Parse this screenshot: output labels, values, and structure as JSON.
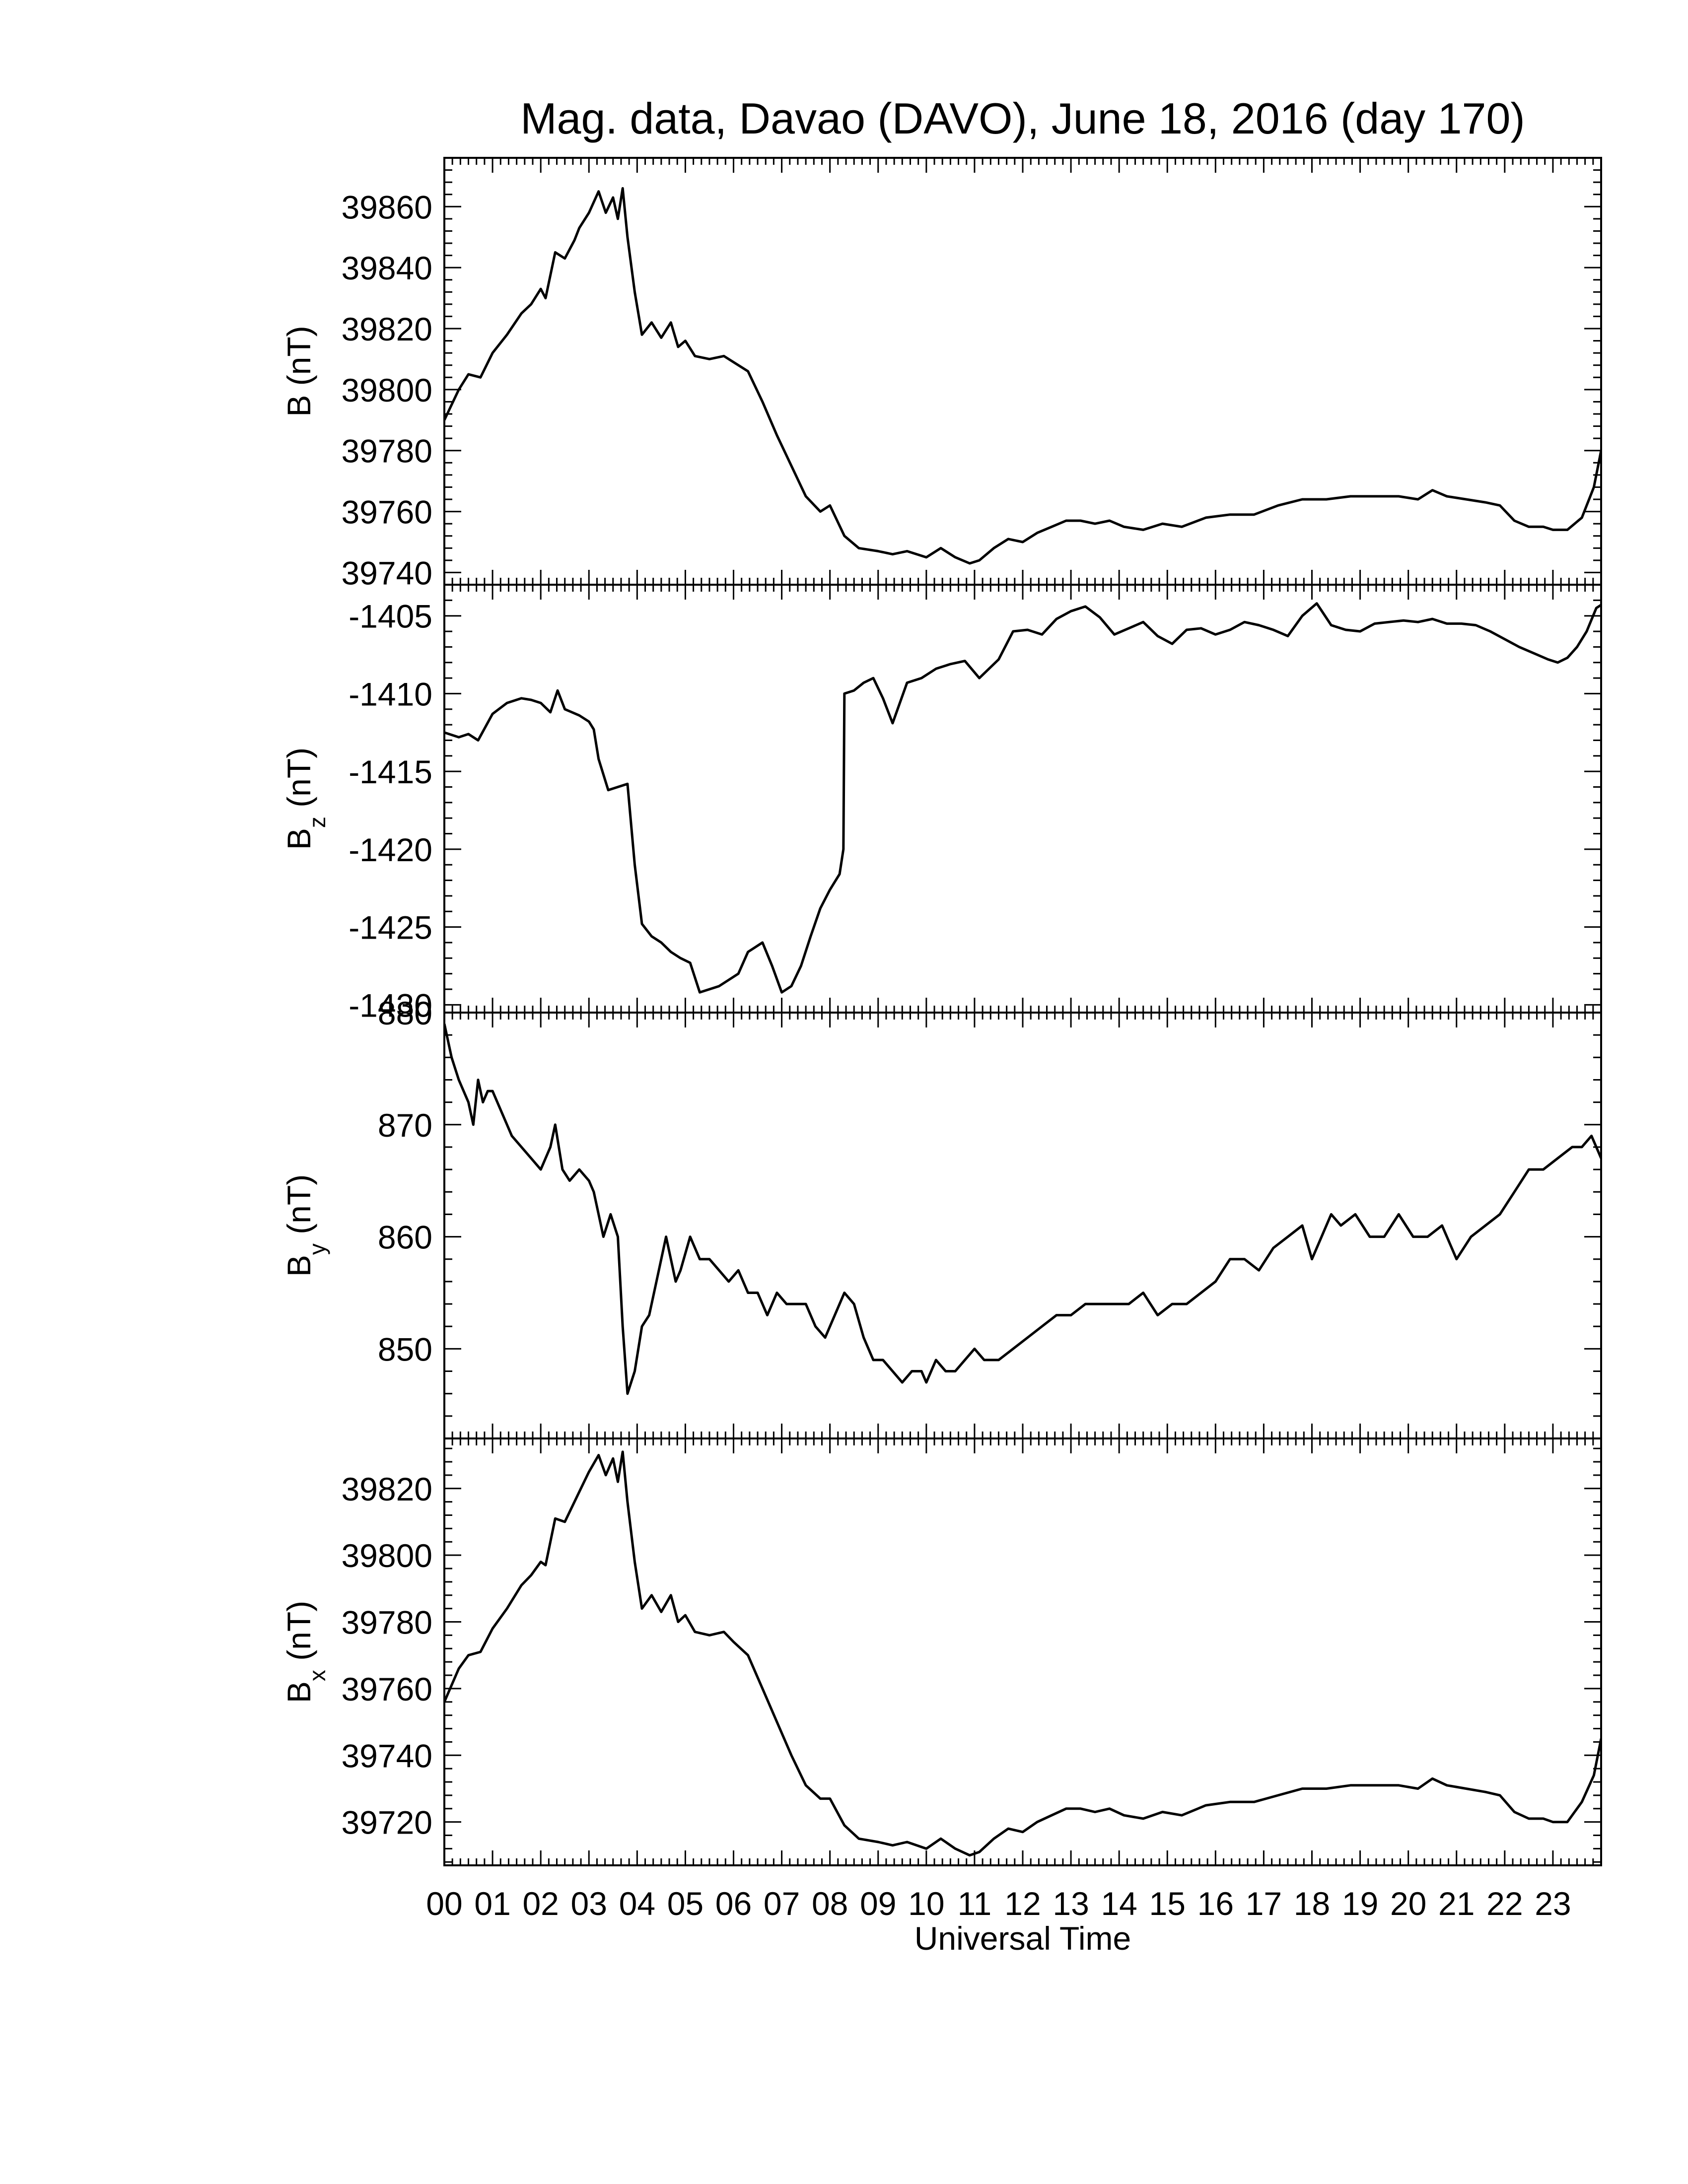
{
  "chart_data": {
    "title": "Mag. data, Davao (DAVO), June 18, 2016 (day 170)",
    "xlabel": "Universal Time",
    "x_ticks": [
      "00",
      "01",
      "02",
      "03",
      "04",
      "05",
      "06",
      "07",
      "08",
      "09",
      "10",
      "11",
      "12",
      "13",
      "14",
      "15",
      "16",
      "17",
      "18",
      "19",
      "20",
      "21",
      "22",
      "23"
    ],
    "xlim": [
      0,
      24
    ],
    "panels": [
      {
        "type": "line",
        "ylabel": "B (nT)",
        "ylabel_main": "B",
        "ylabel_sub": "",
        "ylim": [
          39736,
          39876
        ],
        "yticks": [
          39740,
          39760,
          39780,
          39800,
          39820,
          39840,
          39860
        ],
        "ytick_labels": [
          "39740",
          "39760",
          "39780",
          "39800",
          "39820",
          "39840",
          "39860"
        ],
        "x": [
          0.0,
          0.3,
          0.5,
          0.75,
          1.0,
          1.3,
          1.6,
          1.8,
          2.0,
          2.1,
          2.3,
          2.5,
          2.7,
          2.8,
          3.0,
          3.2,
          3.35,
          3.5,
          3.6,
          3.7,
          3.8,
          3.95,
          4.1,
          4.3,
          4.5,
          4.7,
          4.85,
          5.0,
          5.2,
          5.5,
          5.8,
          6.0,
          6.3,
          6.6,
          6.9,
          7.2,
          7.5,
          7.8,
          8.0,
          8.3,
          8.6,
          9.0,
          9.3,
          9.6,
          10.0,
          10.3,
          10.6,
          10.9,
          11.1,
          11.4,
          11.7,
          12.0,
          12.3,
          12.6,
          12.9,
          13.2,
          13.5,
          13.8,
          14.1,
          14.5,
          14.9,
          15.3,
          15.8,
          16.3,
          16.8,
          17.3,
          17.8,
          18.3,
          18.8,
          19.3,
          19.8,
          20.2,
          20.5,
          20.8,
          21.2,
          21.6,
          21.9,
          22.2,
          22.5,
          22.8,
          23.0,
          23.3,
          23.6,
          23.85,
          24.0
        ],
        "y": [
          39790,
          39800,
          39805,
          39804,
          39812,
          39818,
          39825,
          39828,
          39833,
          39830,
          39845,
          39843,
          39849,
          39853,
          39858,
          39865,
          39858,
          39863,
          39856,
          39866,
          39850,
          39832,
          39818,
          39822,
          39817,
          39822,
          39814,
          39816,
          39811,
          39810,
          39811,
          39809,
          39806,
          39796,
          39785,
          39775,
          39765,
          39760,
          39762,
          39752,
          39748,
          39747,
          39746,
          39747,
          39745,
          39748,
          39745,
          39743,
          39744,
          39748,
          39751,
          39750,
          39753,
          39755,
          39757,
          39757,
          39756,
          39757,
          39755,
          39754,
          39756,
          39755,
          39758,
          39759,
          39759,
          39762,
          39764,
          39764,
          39765,
          39765,
          39765,
          39764,
          39767,
          39765,
          39764,
          39763,
          39762,
          39757,
          39755,
          39755,
          39754,
          39754,
          39758,
          39768,
          39780
        ],
        "color": "#000000"
      },
      {
        "type": "line",
        "ylabel": "Bz (nT)",
        "ylabel_main": "B",
        "ylabel_sub": "z",
        "ylim": [
          -1430.5,
          -1403.0
        ],
        "yticks": [
          -1430,
          -1425,
          -1420,
          -1415,
          -1410,
          -1405
        ],
        "ytick_labels": [
          "-1430",
          "-1425",
          "-1420",
          "-1415",
          "-1410",
          "-1405"
        ],
        "x": [
          0.0,
          0.3,
          0.5,
          0.7,
          1.0,
          1.3,
          1.6,
          1.8,
          2.0,
          2.2,
          2.35,
          2.5,
          2.8,
          3.0,
          3.1,
          3.2,
          3.4,
          3.6,
          3.8,
          3.95,
          4.1,
          4.3,
          4.5,
          4.7,
          4.9,
          5.1,
          5.3,
          5.5,
          5.7,
          5.9,
          6.1,
          6.3,
          6.6,
          6.8,
          7.0,
          7.2,
          7.4,
          7.6,
          7.8,
          8.0,
          8.2,
          8.28,
          8.3,
          8.5,
          8.7,
          8.9,
          9.1,
          9.3,
          9.6,
          9.9,
          10.2,
          10.5,
          10.8,
          11.1,
          11.5,
          11.8,
          12.1,
          12.4,
          12.7,
          13.0,
          13.3,
          13.6,
          13.9,
          14.2,
          14.5,
          14.8,
          15.1,
          15.4,
          15.7,
          16.0,
          16.3,
          16.6,
          16.9,
          17.2,
          17.5,
          17.8,
          18.1,
          18.4,
          18.7,
          19.0,
          19.3,
          19.6,
          19.9,
          20.2,
          20.5,
          20.8,
          21.1,
          21.4,
          21.7,
          22.0,
          22.3,
          22.6,
          22.9,
          23.1,
          23.3,
          23.5,
          23.7,
          23.9,
          24.0
        ],
        "y": [
          -1412.5,
          -1412.8,
          -1412.6,
          -1413.0,
          -1411.3,
          -1410.6,
          -1410.3,
          -1410.4,
          -1410.6,
          -1411.2,
          -1409.8,
          -1411.0,
          -1411.4,
          -1411.8,
          -1412.3,
          -1414.2,
          -1416.2,
          -1416.0,
          -1415.8,
          -1421.0,
          -1424.8,
          -1425.6,
          -1426.0,
          -1426.6,
          -1427.0,
          -1427.3,
          -1429.2,
          -1429.0,
          -1428.8,
          -1428.4,
          -1428.0,
          -1426.6,
          -1426.0,
          -1427.5,
          -1429.2,
          -1428.8,
          -1427.5,
          -1425.6,
          -1423.8,
          -1422.6,
          -1421.6,
          -1420.0,
          -1410.0,
          -1409.8,
          -1409.3,
          -1409.0,
          -1410.3,
          -1411.9,
          -1409.3,
          -1409.0,
          -1408.4,
          -1408.1,
          -1407.9,
          -1409.0,
          -1407.8,
          -1406.0,
          -1405.9,
          -1406.2,
          -1405.2,
          -1404.7,
          -1404.4,
          -1405.1,
          -1406.2,
          -1405.8,
          -1405.4,
          -1406.3,
          -1406.8,
          -1405.9,
          -1405.8,
          -1406.2,
          -1405.9,
          -1405.4,
          -1405.6,
          -1405.9,
          -1406.3,
          -1405.0,
          -1404.2,
          -1405.6,
          -1405.9,
          -1406.0,
          -1405.5,
          -1405.4,
          -1405.3,
          -1405.4,
          -1405.2,
          -1405.5,
          -1405.5,
          -1405.6,
          -1406.0,
          -1406.5,
          -1407.0,
          -1407.4,
          -1407.8,
          -1408.0,
          -1407.7,
          -1407.0,
          -1406.0,
          -1404.5,
          -1404.3
        ],
        "color": "#000000"
      },
      {
        "type": "line",
        "ylabel": "By (nT)",
        "ylabel_main": "B",
        "ylabel_sub": "y",
        "ylim": [
          842,
          880
        ],
        "yticks": [
          850,
          860,
          870,
          880
        ],
        "ytick_labels": [
          "850",
          "860",
          "870",
          "880"
        ],
        "x": [
          0.0,
          0.15,
          0.3,
          0.5,
          0.6,
          0.7,
          0.8,
          0.9,
          1.0,
          1.2,
          1.4,
          1.6,
          1.8,
          2.0,
          2.2,
          2.3,
          2.45,
          2.6,
          2.8,
          3.0,
          3.1,
          3.2,
          3.3,
          3.45,
          3.6,
          3.7,
          3.8,
          3.95,
          4.1,
          4.25,
          4.4,
          4.6,
          4.8,
          4.9,
          5.1,
          5.3,
          5.5,
          5.7,
          5.9,
          6.1,
          6.3,
          6.5,
          6.7,
          6.9,
          7.1,
          7.3,
          7.5,
          7.7,
          7.9,
          8.1,
          8.3,
          8.5,
          8.7,
          8.9,
          9.1,
          9.3,
          9.5,
          9.7,
          9.9,
          10.0,
          10.2,
          10.4,
          10.6,
          10.8,
          11.0,
          11.2,
          11.5,
          11.8,
          12.1,
          12.4,
          12.7,
          13.0,
          13.3,
          13.6,
          13.9,
          14.2,
          14.5,
          14.8,
          15.1,
          15.4,
          15.7,
          16.0,
          16.3,
          16.6,
          16.9,
          17.2,
          17.5,
          17.8,
          18.0,
          18.2,
          18.4,
          18.6,
          18.9,
          19.2,
          19.5,
          19.8,
          20.1,
          20.4,
          20.7,
          21.0,
          21.3,
          21.6,
          21.9,
          22.2,
          22.5,
          22.8,
          23.1,
          23.4,
          23.6,
          23.8,
          24.0
        ],
        "y": [
          879,
          876,
          874,
          872,
          870,
          874,
          872,
          873,
          873,
          871,
          869,
          868,
          867,
          866,
          868,
          870,
          866,
          865,
          866,
          865,
          864,
          862,
          860,
          862,
          860,
          852,
          846,
          848,
          852,
          853,
          856,
          860,
          856,
          857,
          860,
          858,
          858,
          857,
          856,
          857,
          855,
          855,
          853,
          855,
          854,
          854,
          854,
          852,
          851,
          853,
          855,
          854,
          851,
          849,
          849,
          848,
          847,
          848,
          848,
          847,
          849,
          848,
          848,
          849,
          850,
          849,
          849,
          850,
          851,
          852,
          853,
          853,
          854,
          854,
          854,
          854,
          855,
          853,
          854,
          854,
          855,
          856,
          858,
          858,
          857,
          859,
          860,
          861,
          858,
          860,
          862,
          861,
          862,
          860,
          860,
          862,
          860,
          860,
          861,
          858,
          860,
          861,
          862,
          864,
          866,
          866,
          867,
          868,
          868,
          869,
          867
        ],
        "color": "#000000"
      },
      {
        "type": "line",
        "ylabel": "Bx (nT)",
        "ylabel_main": "B",
        "ylabel_sub": "x",
        "ylim": [
          39707,
          39835
        ],
        "yticks": [
          39720,
          39740,
          39760,
          39780,
          39800,
          39820
        ],
        "ytick_labels": [
          "39720",
          "39740",
          "39760",
          "39780",
          "39800",
          "39820"
        ],
        "x": [
          0.0,
          0.3,
          0.5,
          0.75,
          1.0,
          1.3,
          1.6,
          1.8,
          2.0,
          2.1,
          2.3,
          2.5,
          2.7,
          2.8,
          3.0,
          3.2,
          3.35,
          3.5,
          3.6,
          3.7,
          3.8,
          3.95,
          4.1,
          4.3,
          4.5,
          4.7,
          4.85,
          5.0,
          5.2,
          5.5,
          5.8,
          6.0,
          6.3,
          6.6,
          6.9,
          7.2,
          7.5,
          7.8,
          8.0,
          8.3,
          8.6,
          9.0,
          9.3,
          9.6,
          10.0,
          10.3,
          10.6,
          10.9,
          11.1,
          11.4,
          11.7,
          12.0,
          12.3,
          12.6,
          12.9,
          13.2,
          13.5,
          13.8,
          14.1,
          14.5,
          14.9,
          15.3,
          15.8,
          16.3,
          16.8,
          17.3,
          17.8,
          18.3,
          18.8,
          19.3,
          19.8,
          20.2,
          20.5,
          20.8,
          21.2,
          21.6,
          21.9,
          22.2,
          22.5,
          22.8,
          23.0,
          23.3,
          23.6,
          23.85,
          24.0
        ],
        "y": [
          39756,
          39766,
          39770,
          39771,
          39778,
          39784,
          39791,
          39794,
          39798,
          39797,
          39811,
          39810,
          39816,
          39819,
          39825,
          39830,
          39824,
          39829,
          39822,
          39831,
          39816,
          39798,
          39784,
          39788,
          39783,
          39788,
          39780,
          39782,
          39777,
          39776,
          39777,
          39774,
          39770,
          39760,
          39750,
          39740,
          39731,
          39727,
          39727,
          39719,
          39715,
          39714,
          39713,
          39714,
          39712,
          39715,
          39712,
          39710,
          39711,
          39715,
          39718,
          39717,
          39720,
          39722,
          39724,
          39724,
          39723,
          39724,
          39722,
          39721,
          39723,
          39722,
          39725,
          39726,
          39726,
          39728,
          39730,
          39730,
          39731,
          39731,
          39731,
          39730,
          39733,
          39731,
          39730,
          39729,
          39728,
          39723,
          39721,
          39721,
          39720,
          39720,
          39726,
          39734,
          39745
        ],
        "color": "#000000"
      }
    ]
  }
}
